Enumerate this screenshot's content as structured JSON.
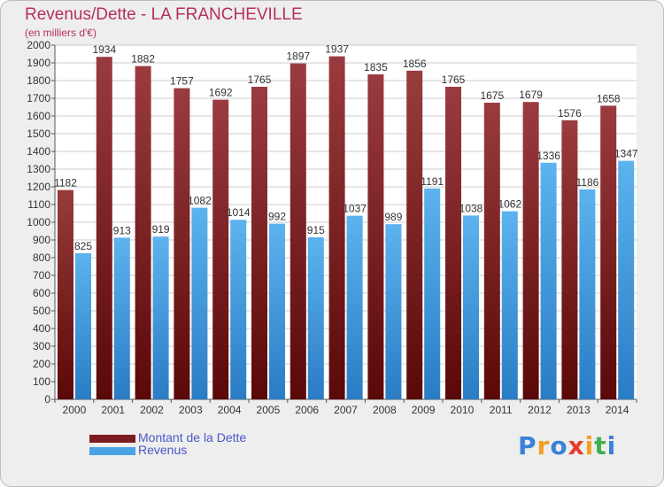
{
  "header": {
    "title": "Revenus/Dette - LA FRANCHEVILLE",
    "subtitle": "(en milliers d'€)"
  },
  "colors": {
    "debt_top": "#9a3b3f",
    "debt_bottom": "#5a0808",
    "revenue_top": "#5cb3ee",
    "revenue_bottom": "#2a7cc4",
    "background": "#eeeeee",
    "grid": "#cccccc",
    "title": "#b5305a",
    "legend_text": "#4a58c8"
  },
  "legend": [
    {
      "label": "Montant de la Dette",
      "color": "#7a1c22"
    },
    {
      "label": "Revenus",
      "color": "#4aa3e6"
    }
  ],
  "logo": {
    "text": "Proxiti"
  },
  "chart_data": {
    "type": "bar",
    "title": "Revenus/Dette - LA FRANCHEVILLE",
    "subtitle": "(en milliers d'€)",
    "categories": [
      "2000",
      "2001",
      "2002",
      "2003",
      "2004",
      "2005",
      "2006",
      "2007",
      "2008",
      "2009",
      "2010",
      "2011",
      "2012",
      "2013",
      "2014"
    ],
    "series": [
      {
        "name": "Montant de la Dette",
        "values": [
          1182,
          1934,
          1882,
          1757,
          1692,
          1765,
          1897,
          1937,
          1835,
          1856,
          1765,
          1675,
          1679,
          1576,
          1658
        ]
      },
      {
        "name": "Revenus",
        "values": [
          825,
          913,
          919,
          1082,
          1014,
          992,
          915,
          1037,
          989,
          1191,
          1038,
          1062,
          1336,
          1186,
          1347
        ]
      }
    ],
    "ylim": [
      0,
      2000
    ],
    "ytick_step": 100,
    "grid": true,
    "legend_position": "bottom-left"
  }
}
